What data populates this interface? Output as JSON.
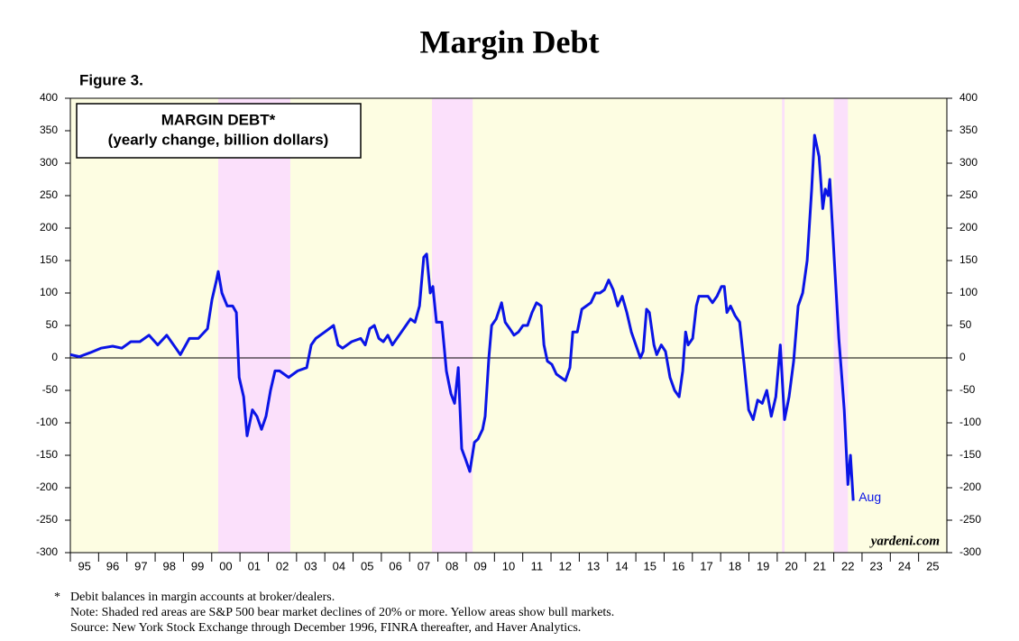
{
  "chart_data": {
    "type": "line",
    "title": "Margin Debt",
    "figure_label": "Figure 3.",
    "box_lines": [
      "MARGIN DEBT*",
      "(yearly change, billion dollars)"
    ],
    "annotations": {
      "end_label": "Aug",
      "watermark": "yardeni.com"
    },
    "footnotes": [
      {
        "marker": "*",
        "text": "Debit balances in margin accounts at broker/dealers."
      },
      {
        "marker": null,
        "text": "Note: Shaded red areas are S&P 500 bear market declines of 20% or more. Yellow areas show bull markets."
      },
      {
        "marker": null,
        "text": "Source: New York Stock Exchange through December 1996, FINRA thereafter, and Haver Analytics."
      }
    ],
    "color": "#0a14e6",
    "background_color": "#fdfde2",
    "shaded_color": "#fbe0fb",
    "shaded_periods": [
      [
        2000.23,
        2002.78
      ],
      [
        2007.79,
        2009.23
      ],
      [
        2020.17,
        2020.26
      ],
      [
        2022.0,
        2022.5
      ]
    ],
    "zero_line": true,
    "xlim": [
      1995,
      2026
    ],
    "ylim": [
      -300,
      400
    ],
    "yticks": [
      -300,
      -250,
      -200,
      -150,
      -100,
      -50,
      0,
      50,
      100,
      150,
      200,
      250,
      300,
      350,
      400
    ],
    "xticks": [
      {
        "value": 1995,
        "label": "95"
      },
      {
        "value": 1996,
        "label": "96"
      },
      {
        "value": 1997,
        "label": "97"
      },
      {
        "value": 1998,
        "label": "98"
      },
      {
        "value": 1999,
        "label": "99"
      },
      {
        "value": 2000,
        "label": "00"
      },
      {
        "value": 2001,
        "label": "01"
      },
      {
        "value": 2002,
        "label": "02"
      },
      {
        "value": 2003,
        "label": "03"
      },
      {
        "value": 2004,
        "label": "04"
      },
      {
        "value": 2005,
        "label": "05"
      },
      {
        "value": 2006,
        "label": "06"
      },
      {
        "value": 2007,
        "label": "07"
      },
      {
        "value": 2008,
        "label": "08"
      },
      {
        "value": 2009,
        "label": "09"
      },
      {
        "value": 2010,
        "label": "10"
      },
      {
        "value": 2011,
        "label": "11"
      },
      {
        "value": 2012,
        "label": "12"
      },
      {
        "value": 2013,
        "label": "13"
      },
      {
        "value": 2014,
        "label": "14"
      },
      {
        "value": 2015,
        "label": "15"
      },
      {
        "value": 2016,
        "label": "16"
      },
      {
        "value": 2017,
        "label": "17"
      },
      {
        "value": 2018,
        "label": "18"
      },
      {
        "value": 2019,
        "label": "19"
      },
      {
        "value": 2020,
        "label": "20"
      },
      {
        "value": 2021,
        "label": "21"
      },
      {
        "value": 2022,
        "label": "22"
      },
      {
        "value": 2023,
        "label": "23"
      },
      {
        "value": 2024,
        "label": "24"
      },
      {
        "value": 2025,
        "label": "25"
      }
    ],
    "x": [
      1995.0,
      1995.32,
      1995.7,
      1996.08,
      1996.5,
      1996.82,
      1997.14,
      1997.46,
      1997.78,
      1998.09,
      1998.41,
      1998.73,
      1998.89,
      1999.21,
      1999.53,
      1999.85,
      2000.01,
      2000.17,
      2000.23,
      2000.36,
      2000.55,
      2000.74,
      2000.87,
      2000.97,
      2001.13,
      2001.25,
      2001.44,
      2001.6,
      2001.76,
      2001.92,
      2002.08,
      2002.24,
      2002.4,
      2002.72,
      2003.04,
      2003.36,
      2003.52,
      2003.68,
      2004.0,
      2004.31,
      2004.47,
      2004.63,
      2004.95,
      2005.27,
      2005.43,
      2005.59,
      2005.75,
      2005.91,
      2006.07,
      2006.23,
      2006.39,
      2006.71,
      2006.87,
      2007.03,
      2007.19,
      2007.35,
      2007.5,
      2007.6,
      2007.73,
      2007.82,
      2007.95,
      2008.14,
      2008.3,
      2008.46,
      2008.59,
      2008.72,
      2008.84,
      2008.97,
      2009.13,
      2009.29,
      2009.42,
      2009.58,
      2009.67,
      2009.8,
      2009.9,
      2010.06,
      2010.25,
      2010.38,
      2010.54,
      2010.69,
      2010.85,
      2011.01,
      2011.17,
      2011.33,
      2011.49,
      2011.65,
      2011.75,
      2011.87,
      2012.03,
      2012.19,
      2012.35,
      2012.51,
      2012.67,
      2012.77,
      2012.93,
      2013.09,
      2013.25,
      2013.41,
      2013.57,
      2013.73,
      2013.89,
      2014.04,
      2014.2,
      2014.36,
      2014.52,
      2014.68,
      2014.84,
      2015.0,
      2015.16,
      2015.26,
      2015.38,
      2015.48,
      2015.64,
      2015.74,
      2015.9,
      2016.05,
      2016.21,
      2016.37,
      2016.53,
      2016.66,
      2016.76,
      2016.85,
      2017.01,
      2017.14,
      2017.23,
      2017.39,
      2017.55,
      2017.71,
      2017.87,
      2018.03,
      2018.13,
      2018.22,
      2018.35,
      2018.51,
      2018.67,
      2018.83,
      2018.99,
      2019.15,
      2019.31,
      2019.47,
      2019.63,
      2019.79,
      2019.95,
      2020.11,
      2020.26,
      2020.42,
      2020.58,
      2020.74,
      2020.9,
      2021.06,
      2021.22,
      2021.32,
      2021.48,
      2021.61,
      2021.7,
      2021.8,
      2021.86,
      2022.02,
      2022.18,
      2022.27,
      2022.37,
      2022.5,
      2022.59,
      2022.69
    ],
    "values": [
      5,
      2,
      8,
      15,
      18,
      15,
      25,
      25,
      35,
      20,
      35,
      15,
      5,
      30,
      30,
      45,
      90,
      120,
      133,
      100,
      80,
      80,
      70,
      -30,
      -60,
      -120,
      -80,
      -90,
      -110,
      -90,
      -50,
      -20,
      -20,
      -30,
      -20,
      -15,
      20,
      30,
      40,
      50,
      20,
      15,
      25,
      30,
      20,
      45,
      50,
      30,
      25,
      35,
      20,
      40,
      50,
      60,
      55,
      80,
      155,
      160,
      100,
      110,
      55,
      55,
      -20,
      -55,
      -70,
      -15,
      -140,
      -155,
      -175,
      -130,
      -125,
      -110,
      -90,
      0,
      50,
      60,
      85,
      55,
      45,
      35,
      40,
      50,
      50,
      70,
      85,
      80,
      20,
      -5,
      -10,
      -25,
      -30,
      -35,
      -15,
      40,
      40,
      75,
      80,
      85,
      100,
      100,
      105,
      120,
      105,
      80,
      95,
      70,
      40,
      20,
      0,
      10,
      75,
      70,
      20,
      5,
      20,
      10,
      -30,
      -50,
      -60,
      -20,
      40,
      20,
      30,
      80,
      95,
      95,
      95,
      85,
      95,
      110,
      110,
      70,
      80,
      65,
      55,
      -10,
      -80,
      -95,
      -65,
      -70,
      -50,
      -90,
      -60,
      20,
      -95,
      -60,
      -5,
      80,
      100,
      150,
      260,
      343,
      310,
      230,
      260,
      250,
      275,
      150,
      30,
      -20,
      -80,
      -195,
      -150,
      -220
    ]
  }
}
